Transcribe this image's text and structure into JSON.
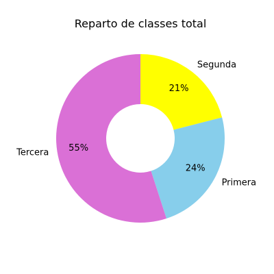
{
  "chart_data": {
    "type": "pie",
    "title": "Reparto de classes total",
    "donut": true,
    "start_angle_deg": 90,
    "direction": "clockwise",
    "slices": [
      {
        "label": "Segunda",
        "percent_label": "21%",
        "value": 21,
        "color": "#ffff00"
      },
      {
        "label": "Primera",
        "percent_label": "24%",
        "value": 24,
        "color": "#87ceeb"
      },
      {
        "label": "Tercera",
        "percent_label": "55%",
        "value": 55,
        "color": "#da70d6"
      }
    ]
  }
}
